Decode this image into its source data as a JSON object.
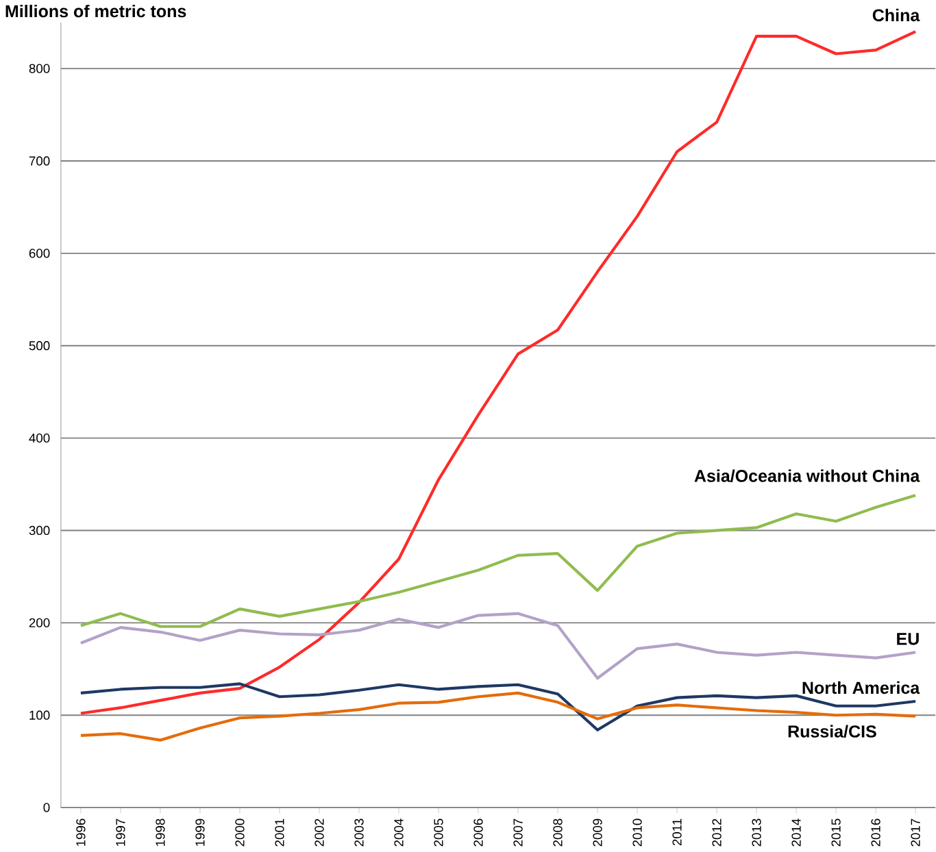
{
  "chart_data": {
    "type": "line",
    "ylabel": "Millions of metric tons",
    "categories": [
      "1996",
      "1997",
      "1998",
      "1999",
      "2000",
      "2001",
      "2002",
      "2003",
      "2004",
      "2005",
      "2006",
      "2007",
      "2008",
      "2009",
      "2010",
      "2011",
      "2012",
      "2013",
      "2014",
      "2015",
      "2016",
      "2017"
    ],
    "series": [
      {
        "name": "China",
        "color": "#ff2a2a",
        "values": [
          102,
          108,
          116,
          124,
          129,
          152,
          182,
          222,
          269,
          355,
          425,
          491,
          517,
          580,
          640,
          710,
          742,
          835,
          835,
          816,
          820,
          840
        ]
      },
      {
        "name": "Asia/Oceania without China",
        "color": "#8fbc4f",
        "values": [
          197,
          210,
          196,
          196,
          215,
          207,
          215,
          223,
          233,
          245,
          257,
          273,
          275,
          235,
          283,
          297,
          300,
          303,
          318,
          310,
          325,
          338
        ]
      },
      {
        "name": "EU",
        "color": "#b3a2c7",
        "values": [
          178,
          195,
          190,
          181,
          192,
          188,
          187,
          192,
          204,
          195,
          208,
          210,
          197,
          140,
          172,
          177,
          168,
          165,
          168,
          165,
          162,
          168
        ]
      },
      {
        "name": "North America",
        "color": "#1f3864",
        "values": [
          124,
          128,
          130,
          130,
          134,
          120,
          122,
          127,
          133,
          128,
          131,
          133,
          123,
          84,
          110,
          119,
          121,
          119,
          121,
          110,
          110,
          115
        ]
      },
      {
        "name": "Russia/CIS",
        "color": "#e46c0a",
        "values": [
          78,
          80,
          73,
          86,
          97,
          99,
          102,
          106,
          113,
          114,
          120,
          124,
          114,
          96,
          108,
          111,
          108,
          105,
          103,
          100,
          101,
          99
        ]
      }
    ],
    "ylim": [
      0,
      850
    ],
    "yticks": [
      0,
      100,
      200,
      300,
      400,
      500,
      600,
      700,
      800
    ],
    "grid": "y",
    "marker": "none",
    "line_style": "solid"
  }
}
